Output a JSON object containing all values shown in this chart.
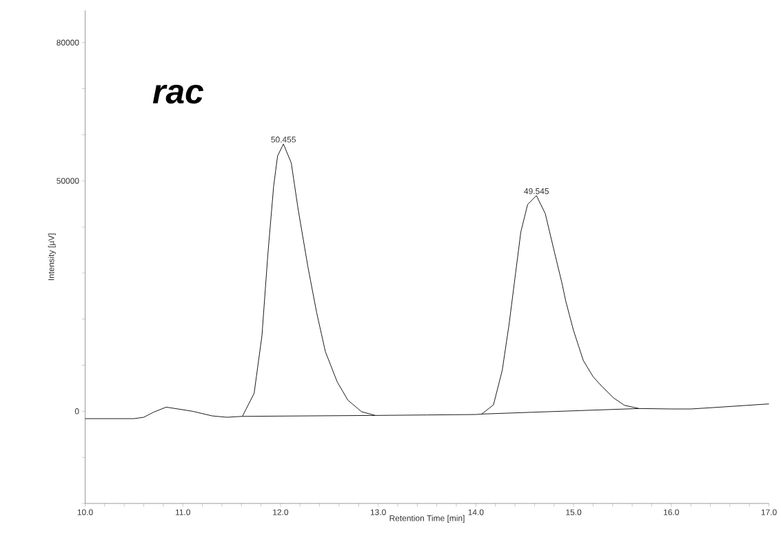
{
  "chart_data": {
    "type": "line",
    "xlabel": "Retention Time [min]",
    "ylabel": "Intensity [µV]",
    "xlim": [
      10,
      17
    ],
    "ylim": [
      -20000,
      87000
    ],
    "xticks": [
      {
        "value": 10,
        "label": "10.0"
      },
      {
        "value": 10.2,
        "label": null
      },
      {
        "value": 10.4,
        "label": null
      },
      {
        "value": 10.6,
        "label": null
      },
      {
        "value": 10.8,
        "label": null
      },
      {
        "value": 11,
        "label": "11.0"
      },
      {
        "value": 11.2,
        "label": null
      },
      {
        "value": 11.4,
        "label": null
      },
      {
        "value": 11.6,
        "label": null
      },
      {
        "value": 11.8,
        "label": null
      },
      {
        "value": 12,
        "label": "12.0"
      },
      {
        "value": 12.2,
        "label": null
      },
      {
        "value": 12.4,
        "label": null
      },
      {
        "value": 12.6,
        "label": null
      },
      {
        "value": 12.8,
        "label": null
      },
      {
        "value": 13,
        "label": "13.0"
      },
      {
        "value": 13.2,
        "label": null
      },
      {
        "value": 13.4,
        "label": null
      },
      {
        "value": 13.6,
        "label": null
      },
      {
        "value": 13.8,
        "label": null
      },
      {
        "value": 14,
        "label": "14.0"
      },
      {
        "value": 14.2,
        "label": null
      },
      {
        "value": 14.4,
        "label": null
      },
      {
        "value": 14.6,
        "label": null
      },
      {
        "value": 14.8,
        "label": null
      },
      {
        "value": 15,
        "label": "15.0"
      },
      {
        "value": 15.2,
        "label": null
      },
      {
        "value": 15.4,
        "label": null
      },
      {
        "value": 15.6,
        "label": null
      },
      {
        "value": 15.8,
        "label": null
      },
      {
        "value": 16,
        "label": "16.0"
      },
      {
        "value": 16.2,
        "label": null
      },
      {
        "value": 16.4,
        "label": null
      },
      {
        "value": 16.6,
        "label": null
      },
      {
        "value": 16.8,
        "label": null
      },
      {
        "value": 17,
        "label": "17.0"
      }
    ],
    "yticks": [
      {
        "value": -20000,
        "label": null
      },
      {
        "value": -10000,
        "label": null
      },
      0,
      {
        "value": 10000,
        "label": null
      },
      {
        "value": 20000,
        "label": null
      },
      {
        "value": 30000,
        "label": null
      },
      {
        "value": 40000,
        "label": null
      },
      50000,
      {
        "value": 60000,
        "label": null
      },
      {
        "value": 70000,
        "label": null
      },
      80000
    ],
    "marker": "none",
    "line_style": "solid",
    "series": [
      {
        "color": "#000000",
        "x": [
          10.0,
          10.5,
          10.6,
          10.7,
          10.83,
          10.95,
          11.1,
          11.3,
          11.45,
          11.61,
          11.73,
          11.81,
          11.87,
          11.93,
          11.97,
          12.03,
          12.11,
          12.18,
          12.28,
          12.37,
          12.46,
          12.58,
          12.69,
          12.83,
          12.97,
          13.5,
          14.0,
          14.06,
          14.18,
          14.27,
          14.34,
          14.4,
          14.46,
          14.53,
          14.62,
          14.71,
          14.8,
          14.88,
          14.92,
          15.0,
          15.1,
          15.2,
          15.29,
          15.41,
          15.52,
          15.67,
          16.0,
          16.2,
          16.5,
          17.0
        ],
        "values": [
          -1600,
          -1600,
          -1300,
          -200,
          900,
          500,
          0,
          -1000,
          -1300,
          -1100,
          3900,
          16400,
          33900,
          48900,
          55400,
          58000,
          53900,
          43900,
          31400,
          21400,
          12900,
          6400,
          2400,
          -100,
          -900,
          -800,
          -700,
          -600,
          1400,
          8900,
          18900,
          28900,
          38900,
          44900,
          46800,
          42900,
          34900,
          27900,
          23900,
          17500,
          11000,
          7500,
          5400,
          2900,
          1300,
          600,
          500,
          500,
          900,
          1600
        ]
      },
      {
        "color": "#000000",
        "x": [
          11.61,
          12.97
        ],
        "values": [
          -1100,
          -900
        ]
      },
      {
        "color": "#000000",
        "x": [
          14.06,
          15.67
        ],
        "values": [
          -600,
          600
        ]
      }
    ],
    "annotations": [
      "rac",
      {
        "text": "50.455",
        "x": 12.03,
        "y": 58000
      },
      {
        "text": "49.545",
        "x": 14.62,
        "y": 46800
      }
    ]
  }
}
